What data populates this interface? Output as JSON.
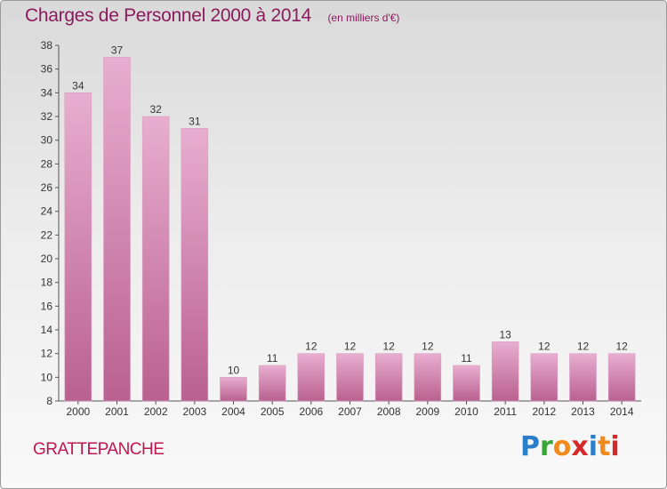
{
  "title": "Charges de Personnel 2000 à 2014",
  "unit": "(en milliers d'€)",
  "commune": "GRATTEPANCHE",
  "logo": {
    "text": "Proxiti",
    "letter_colors": [
      "#2a7fc8",
      "#3aa63a",
      "#f08a1c",
      "#d62828",
      "#2a7fc8",
      "#f08a1c",
      "#d62828"
    ]
  },
  "colors": {
    "bar": "#c96ea3",
    "bar_light": "#e8aed0",
    "title": "#8a1b5c",
    "commune": "#c0174e"
  },
  "chart_data": {
    "type": "bar",
    "title": "Charges de Personnel 2000 à 2014",
    "subtitle": "(en milliers d'€)",
    "categories": [
      "2000",
      "2001",
      "2002",
      "2003",
      "2004",
      "2005",
      "2006",
      "2007",
      "2008",
      "2009",
      "2010",
      "2011",
      "2012",
      "2013",
      "2014"
    ],
    "values": [
      34,
      37,
      32,
      31,
      10,
      11,
      12,
      12,
      12,
      12,
      11,
      13,
      12,
      12,
      12
    ],
    "ylim": [
      8,
      38
    ],
    "yticks": [
      8,
      10,
      12,
      14,
      16,
      18,
      20,
      22,
      24,
      26,
      28,
      30,
      32,
      34,
      36,
      38
    ],
    "grid": false,
    "data_labels": true
  }
}
